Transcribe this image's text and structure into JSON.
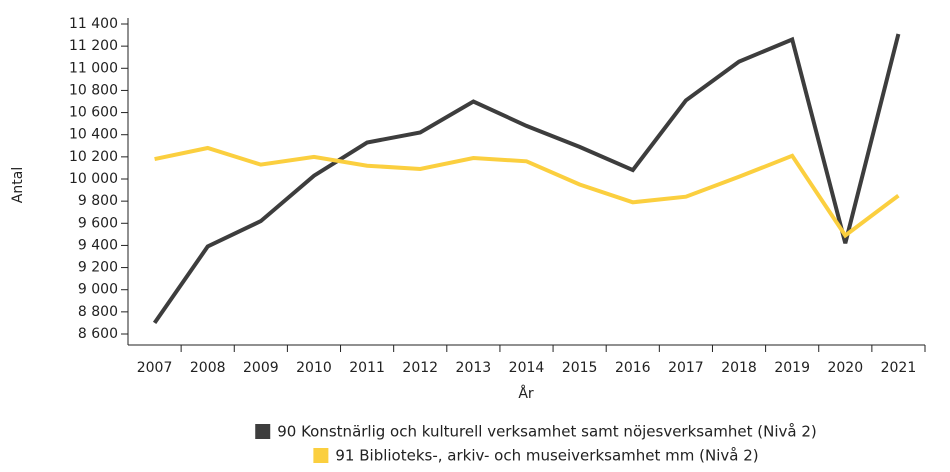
{
  "chart_data": {
    "type": "line",
    "x_label": "År",
    "y_label": "Antal",
    "categories": [
      "2007",
      "2008",
      "2009",
      "2010",
      "2011",
      "2012",
      "2013",
      "2014",
      "2015",
      "2016",
      "2017",
      "2018",
      "2019",
      "2020",
      "2021"
    ],
    "series": [
      {
        "name": "90 Konstnärlig och kulturell verksamhet samt nöjesverksamhet (Nivå 2)",
        "color": "#3d3d3d",
        "values": [
          8700,
          9390,
          9620,
          10030,
          10330,
          10420,
          10700,
          10480,
          10290,
          10080,
          10710,
          11060,
          11260,
          9420,
          11310
        ]
      },
      {
        "name": "91 Biblioteks-, arkiv- och museiverksamhet mm (Nivå 2)",
        "color": "#fbcf3f",
        "values": [
          10180,
          10280,
          10130,
          10200,
          10120,
          10090,
          10190,
          10160,
          9950,
          9790,
          9840,
          10020,
          10210,
          9490,
          9850
        ]
      }
    ],
    "ylim": [
      8600,
      11400
    ],
    "yticks": [
      {
        "value": 8600,
        "label": "8 600"
      },
      {
        "value": 8800,
        "label": "8 800"
      },
      {
        "value": 9000,
        "label": "9 000"
      },
      {
        "value": 9200,
        "label": "9 200"
      },
      {
        "value": 9400,
        "label": "9 400"
      },
      {
        "value": 9600,
        "label": "9 600"
      },
      {
        "value": 9800,
        "label": "9 800"
      },
      {
        "value": 10000,
        "label": "10 000"
      },
      {
        "value": 10200,
        "label": "10 200"
      },
      {
        "value": 10400,
        "label": "10 400"
      },
      {
        "value": 10600,
        "label": "10 600"
      },
      {
        "value": 10800,
        "label": "10 800"
      },
      {
        "value": 11000,
        "label": "11 000"
      },
      {
        "value": 11200,
        "label": "11 200"
      },
      {
        "value": 11400,
        "label": "11 400"
      }
    ],
    "grid": false,
    "legend": "bottom"
  }
}
